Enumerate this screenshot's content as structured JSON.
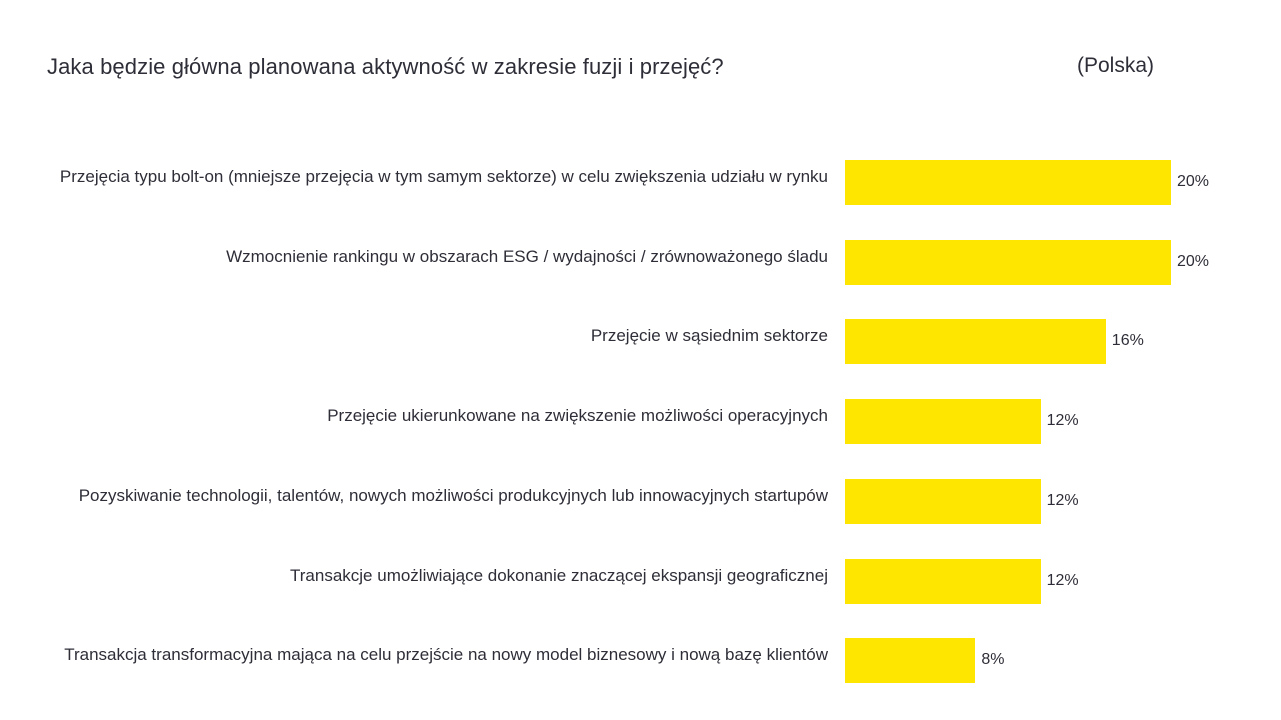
{
  "title": "Jaka będzie główna planowana aktywność w zakresie fuzji i przejęć?",
  "subtitle": "(Polska)",
  "colors": {
    "bar": "#ffe600",
    "text": "#2e2e38",
    "background": "#ffffff"
  },
  "chart_data": {
    "type": "bar",
    "orientation": "horizontal",
    "title": "Jaka będzie główna planowana aktywność w zakresie fuzji i przejęć?",
    "subtitle": "(Polska)",
    "categories": [
      "Przejęcia typu bolt-on (mniejsze przejęcia w tym samym sektorze) w celu zwiększenia udziału w rynku",
      "Wzmocnienie rankingu w obszarach ESG / wydajności / zrównoważonego śladu",
      "Przejęcie w sąsiednim sektorze",
      "Przejęcie ukierunkowane na zwiększenie możliwości operacyjnych",
      "Pozyskiwanie technologii, talentów, nowych możliwości produkcyjnych lub innowacyjnych startupów",
      "Transakcje umożliwiające dokonanie znaczącej ekspansji geograficznej",
      "Transakcja transformacyjna mająca na celu przejście na nowy model biznesowy i nową bazę klientów"
    ],
    "values": [
      20,
      20,
      16,
      12,
      12,
      12,
      8
    ],
    "value_labels": [
      "20%",
      "20%",
      "16%",
      "12%",
      "12%",
      "12%",
      "8%"
    ],
    "unit": "%",
    "xlabel": "",
    "ylabel": "",
    "xlim": [
      0,
      20
    ],
    "grid": false,
    "legend": "none"
  }
}
